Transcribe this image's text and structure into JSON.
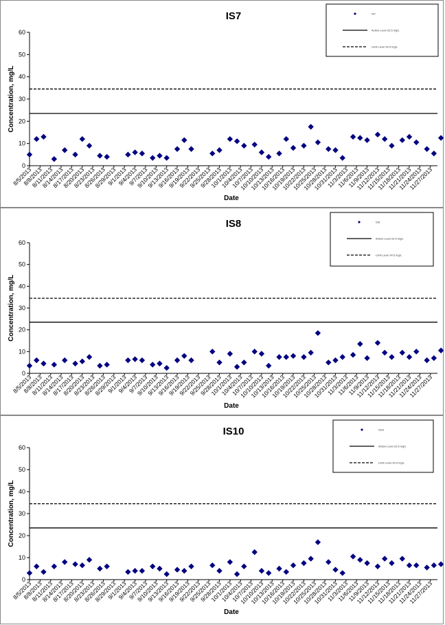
{
  "chart_data": [
    {
      "type": "scatter",
      "title": "IS7",
      "xlabel": "Date",
      "ylabel": "Concentration, mg/L",
      "ylim": [
        0,
        60
      ],
      "yticks": [
        0,
        10,
        20,
        30,
        40,
        50,
        60
      ],
      "xlim": [
        "8/5/2013",
        "11/29/2013"
      ],
      "xtick_labels": [
        "8/5/2013",
        "8/8/2013",
        "8/11/2013",
        "8/14/2013",
        "8/17/2013",
        "8/20/2013",
        "8/23/2013",
        "8/26/2013",
        "8/29/2013",
        "9/1/2013",
        "9/4/2013",
        "9/7/2013",
        "9/10/2013",
        "9/13/2013",
        "9/16/2013",
        "9/19/2013",
        "9/22/2013",
        "9/25/2013",
        "9/28/2013",
        "10/1/2013",
        "10/4/2013",
        "10/7/2013",
        "10/10/2013",
        "10/13/2013",
        "10/16/2013",
        "10/19/2013",
        "10/22/2013",
        "10/25/2013",
        "10/28/2013",
        "10/31/2013",
        "11/3/2013",
        "11/6/2013",
        "11/9/2013",
        "11/12/2013",
        "11/15/2013",
        "11/18/2013",
        "11/21/2013",
        "11/24/2013",
        "11/27/2013"
      ],
      "grid": false,
      "legend_position": "top-right",
      "series": [
        {
          "name": "IS7",
          "marker": "diamond",
          "color": "#000080",
          "x": [
            "8/5/2013",
            "8/7/2013",
            "8/9/2013",
            "8/12/2013",
            "8/15/2013",
            "8/18/2013",
            "8/20/2013",
            "8/22/2013",
            "8/25/2013",
            "8/27/2013",
            "9/2/2013",
            "9/4/2013",
            "9/6/2013",
            "9/9/2013",
            "9/11/2013",
            "9/13/2013",
            "9/16/2013",
            "9/18/2013",
            "9/20/2013",
            "9/26/2013",
            "9/28/2013",
            "10/1/2013",
            "10/3/2013",
            "10/5/2013",
            "10/8/2013",
            "10/10/2013",
            "10/12/2013",
            "10/15/2013",
            "10/17/2013",
            "10/19/2013",
            "10/22/2013",
            "10/24/2013",
            "10/26/2013",
            "10/29/2013",
            "10/31/2013",
            "11/2/2013",
            "11/5/2013",
            "11/7/2013",
            "11/9/2013",
            "11/12/2013",
            "11/14/2013",
            "11/16/2013",
            "11/19/2013",
            "11/21/2013",
            "11/23/2013",
            "11/26/2013",
            "11/28/2013",
            "11/30/2013"
          ],
          "y": [
            5,
            12,
            13,
            3,
            7,
            5,
            12,
            9,
            4.5,
            4,
            5,
            6,
            5.5,
            3.5,
            4.5,
            3.5,
            7.5,
            11.5,
            7.5,
            5.5,
            7,
            12,
            11,
            9,
            9.5,
            6,
            4,
            5.5,
            12,
            8,
            9,
            17.5,
            10.5,
            7.5,
            7,
            3.5,
            13,
            12.5,
            11.5,
            14,
            12,
            9,
            11.5,
            13,
            10.5,
            7.5,
            5.5,
            12.5
          ]
        },
        {
          "name": "Action Level 23.5 mg/L",
          "type": "hline",
          "y": 23.5,
          "style": "solid"
        },
        {
          "name": "Limit Level 34.5 mg/L",
          "type": "hline",
          "y": 34.5,
          "style": "dashed"
        }
      ]
    },
    {
      "type": "scatter",
      "title": "IS8",
      "xlabel": "Date",
      "ylabel": "Concentration, mg/L",
      "ylim": [
        0,
        60
      ],
      "yticks": [
        0,
        10,
        20,
        30,
        40,
        50,
        60
      ],
      "xlim": [
        "8/5/2013",
        "11/29/2013"
      ],
      "xtick_labels": [
        "8/5/2013",
        "8/8/2013",
        "8/11/2013",
        "8/14/2013",
        "8/17/2013",
        "8/20/2013",
        "8/23/2013",
        "8/26/2013",
        "8/29/2013",
        "9/1/2013",
        "9/4/2013",
        "9/7/2013",
        "9/10/2013",
        "9/13/2013",
        "9/16/2013",
        "9/19/2013",
        "9/22/2013",
        "9/25/2013",
        "9/28/2013",
        "10/1/2013",
        "10/4/2013",
        "10/7/2013",
        "10/10/2013",
        "10/13/2013",
        "10/16/2013",
        "10/19/2013",
        "10/22/2013",
        "10/25/2013",
        "10/28/2013",
        "10/31/2013",
        "11/3/2013",
        "11/6/2013",
        "11/9/2013",
        "11/12/2013",
        "11/15/2013",
        "11/18/2013",
        "11/21/2013",
        "11/24/2013",
        "11/27/2013"
      ],
      "grid": false,
      "legend_position": "top-right",
      "series": [
        {
          "name": "IS8",
          "marker": "diamond",
          "color": "#000080",
          "x": [
            "8/5/2013",
            "8/7/2013",
            "8/9/2013",
            "8/12/2013",
            "8/15/2013",
            "8/18/2013",
            "8/20/2013",
            "8/22/2013",
            "8/25/2013",
            "8/27/2013",
            "9/2/2013",
            "9/4/2013",
            "9/6/2013",
            "9/9/2013",
            "9/11/2013",
            "9/13/2013",
            "9/16/2013",
            "9/18/2013",
            "9/20/2013",
            "9/26/2013",
            "9/28/2013",
            "10/1/2013",
            "10/3/2013",
            "10/5/2013",
            "10/8/2013",
            "10/10/2013",
            "10/12/2013",
            "10/15/2013",
            "10/17/2013",
            "10/19/2013",
            "10/22/2013",
            "10/24/2013",
            "10/26/2013",
            "10/29/2013",
            "10/31/2013",
            "11/2/2013",
            "11/5/2013",
            "11/7/2013",
            "11/9/2013",
            "11/12/2013",
            "11/14/2013",
            "11/16/2013",
            "11/19/2013",
            "11/21/2013",
            "11/23/2013",
            "11/26/2013",
            "11/28/2013",
            "11/30/2013"
          ],
          "y": [
            3.5,
            6,
            4.5,
            4,
            6,
            4.5,
            5.5,
            7.5,
            3.5,
            4,
            6,
            6.5,
            6,
            4,
            4.5,
            2.5,
            6,
            8,
            6,
            10,
            5,
            9,
            3,
            5,
            10,
            9,
            3.5,
            7.5,
            7.5,
            8,
            7.5,
            9.5,
            18.5,
            5,
            6,
            7.5,
            8.5,
            13.5,
            7,
            14,
            9.5,
            7.5,
            9.5,
            7.5,
            10,
            6,
            7,
            10.5
          ]
        },
        {
          "name": "Action Level 23.5 mg/L",
          "type": "hline",
          "y": 23.5,
          "style": "solid"
        },
        {
          "name": "Limit Level 34.5 mg/L",
          "type": "hline",
          "y": 34.5,
          "style": "dashed"
        }
      ]
    },
    {
      "type": "scatter",
      "title": "IS10",
      "xlabel": "Date",
      "ylabel": "Concentration, mg/L",
      "ylim": [
        0,
        60
      ],
      "yticks": [
        0,
        10,
        20,
        30,
        40,
        50,
        60
      ],
      "xlim": [
        "8/5/2013",
        "11/29/2013"
      ],
      "xtick_labels": [
        "8/5/2013",
        "8/8/2013",
        "8/11/2013",
        "8/14/2013",
        "8/17/2013",
        "8/20/2013",
        "8/23/2013",
        "8/26/2013",
        "8/29/2013",
        "9/1/2013",
        "9/4/2013",
        "9/7/2013",
        "9/10/2013",
        "9/13/2013",
        "9/16/2013",
        "9/19/2013",
        "9/22/2013",
        "9/25/2013",
        "9/28/2013",
        "10/1/2013",
        "10/4/2013",
        "10/7/2013",
        "10/10/2013",
        "10/13/2013",
        "10/16/2013",
        "10/19/2013",
        "10/22/2013",
        "10/25/2013",
        "10/28/2013",
        "10/31/2013",
        "11/3/2013",
        "11/6/2013",
        "11/9/2013",
        "11/12/2013",
        "11/15/2013",
        "11/18/2013",
        "11/21/2013",
        "11/24/2013",
        "11/27/2013"
      ],
      "grid": false,
      "legend_position": "top-right",
      "series": [
        {
          "name": "IS10",
          "marker": "diamond",
          "color": "#000080",
          "x": [
            "8/5/2013",
            "8/7/2013",
            "8/9/2013",
            "8/12/2013",
            "8/15/2013",
            "8/18/2013",
            "8/20/2013",
            "8/22/2013",
            "8/25/2013",
            "8/27/2013",
            "9/2/2013",
            "9/4/2013",
            "9/6/2013",
            "9/9/2013",
            "9/11/2013",
            "9/13/2013",
            "9/16/2013",
            "9/18/2013",
            "9/20/2013",
            "9/26/2013",
            "9/28/2013",
            "10/1/2013",
            "10/3/2013",
            "10/5/2013",
            "10/8/2013",
            "10/10/2013",
            "10/12/2013",
            "10/15/2013",
            "10/17/2013",
            "10/19/2013",
            "10/22/2013",
            "10/24/2013",
            "10/26/2013",
            "10/29/2013",
            "10/31/2013",
            "11/2/2013",
            "11/5/2013",
            "11/7/2013",
            "11/9/2013",
            "11/12/2013",
            "11/14/2013",
            "11/16/2013",
            "11/19/2013",
            "11/21/2013",
            "11/23/2013",
            "11/26/2013",
            "11/28/2013",
            "11/30/2013"
          ],
          "y": [
            3,
            6,
            3.5,
            6,
            8,
            7,
            6.5,
            9,
            5,
            6,
            3.5,
            4,
            4,
            6,
            5,
            2.5,
            4.5,
            4,
            6,
            6.5,
            4,
            8,
            2.5,
            6,
            12.5,
            4,
            3,
            5,
            3.5,
            6.5,
            7.5,
            9.5,
            17,
            8,
            4.5,
            3,
            10.5,
            9,
            7.5,
            6,
            9.5,
            7.5,
            9.5,
            6.5,
            6.5,
            5.5,
            6.5,
            7
          ]
        },
        {
          "name": "Action Level 23.5 mg/L",
          "type": "hline",
          "y": 23.5,
          "style": "solid"
        },
        {
          "name": "Limit Level 34.5 mg/L",
          "type": "hline",
          "y": 34.5,
          "style": "dashed"
        }
      ]
    }
  ]
}
